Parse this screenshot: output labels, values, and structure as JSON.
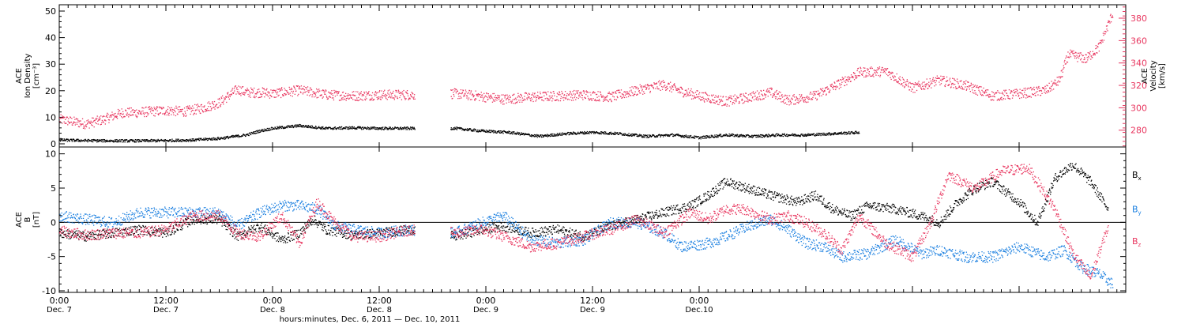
{
  "colors": {
    "black": "#000000",
    "pink": "#e8365f",
    "blue": "#1a7fe0",
    "axis": "#000000"
  },
  "chart_data": [
    {
      "type": "scatter",
      "panel": "top",
      "ylabel_lines": [
        "ACE",
        "Ion Density",
        "[cm⁻³]"
      ],
      "y2label_lines": [
        "ACE",
        "Velocity",
        "[km/s]"
      ],
      "ylim": [
        0,
        50
      ],
      "y_ticks": [
        0,
        10,
        20,
        30,
        40,
        50
      ],
      "y2lim": [
        265,
        392
      ],
      "y2_ticks": [
        280,
        300,
        320,
        340,
        360,
        380
      ],
      "series": [
        {
          "color": "#000000",
          "axis": "left",
          "points": [
            [
              0,
              1.6
            ],
            [
              6,
              1.4
            ],
            [
              12,
              1.3
            ],
            [
              18,
              1.3
            ],
            [
              24,
              1.4
            ],
            [
              30,
              1.6
            ],
            [
              36,
              2.2
            ],
            [
              42,
              3.5
            ],
            [
              45,
              5.0
            ],
            [
              48,
              6.0
            ],
            [
              54,
              7.0
            ],
            [
              60,
              6.0
            ],
            [
              66,
              6.2
            ],
            [
              72,
              6.0
            ],
            [
              79,
              6.0
            ],
            [
              89,
              6.0
            ],
            [
              95,
              5.0
            ],
            [
              101,
              4.5
            ],
            [
              108,
              3.0
            ],
            [
              114,
              4.0
            ],
            [
              120,
              4.5
            ],
            [
              126,
              4.0
            ],
            [
              132,
              3.0
            ],
            [
              138,
              3.5
            ],
            [
              144,
              2.5
            ],
            [
              150,
              3.5
            ],
            [
              156,
              3.0
            ],
            [
              162,
              3.5
            ],
            [
              168,
              3.5
            ],
            [
              174,
              4.0
            ],
            [
              180,
              4.5
            ]
          ]
        },
        {
          "color": "#e8365f",
          "axis": "right",
          "points": [
            [
              0,
              290
            ],
            [
              3,
              288
            ],
            [
              6,
              286
            ],
            [
              10,
              290
            ],
            [
              14,
              296
            ],
            [
              17,
              296
            ],
            [
              20,
              297
            ],
            [
              24,
              298
            ],
            [
              28,
              297
            ],
            [
              32,
              300
            ],
            [
              36,
              305
            ],
            [
              40,
              317
            ],
            [
              42,
              314
            ],
            [
              46,
              314
            ],
            [
              48,
              313
            ],
            [
              54,
              316
            ],
            [
              60,
              312
            ],
            [
              66,
              311
            ],
            [
              72,
              312
            ],
            [
              79,
              312
            ],
            [
              89,
              313
            ],
            [
              94,
              311
            ],
            [
              100,
              308
            ],
            [
              106,
              310
            ],
            [
              112,
              311
            ],
            [
              118,
              312
            ],
            [
              124,
              310
            ],
            [
              130,
              316
            ],
            [
              136,
              321
            ],
            [
              140,
              315
            ],
            [
              144,
              311
            ],
            [
              150,
              306
            ],
            [
              154,
              309
            ],
            [
              160,
              314
            ],
            [
              164,
              307
            ],
            [
              170,
              311
            ],
            [
              176,
              323
            ],
            [
              180,
              332
            ],
            [
              186,
              333
            ],
            [
              192,
              318
            ],
            [
              198,
              325
            ],
            [
              204,
              320
            ],
            [
              210,
              311
            ],
            [
              216,
              313
            ],
            [
              222,
              316
            ],
            [
              225,
              325
            ],
            [
              227,
              348
            ],
            [
              231,
              344
            ],
            [
              234,
              355
            ],
            [
              237,
              385
            ]
          ]
        }
      ]
    },
    {
      "type": "scatter",
      "panel": "bottom",
      "ylabel_lines": [
        "ACE",
        "B",
        "[nT]"
      ],
      "ylim": [
        -10,
        11
      ],
      "y_ticks": [
        -10,
        -5,
        0,
        5,
        10
      ],
      "legend": [
        "Bx",
        "By",
        "Bz"
      ],
      "series": [
        {
          "name": "Bx",
          "color": "#000000",
          "points": [
            [
              0,
              -1.5
            ],
            [
              6,
              -2.0
            ],
            [
              12,
              -1.5
            ],
            [
              18,
              -1.0
            ],
            [
              24,
              -1.5
            ],
            [
              30,
              0.5
            ],
            [
              36,
              0.5
            ],
            [
              40,
              -2.0
            ],
            [
              45,
              -0.5
            ],
            [
              50,
              -2.5
            ],
            [
              54,
              -1.5
            ],
            [
              57,
              0.5
            ],
            [
              60,
              -1.0
            ],
            [
              66,
              -1.8
            ],
            [
              72,
              -1.5
            ],
            [
              79,
              -1.0
            ],
            [
              89,
              -2.0
            ],
            [
              95,
              -1.0
            ],
            [
              100,
              -0.5
            ],
            [
              106,
              -1.5
            ],
            [
              112,
              -1.0
            ],
            [
              118,
              -2.0
            ],
            [
              124,
              -0.5
            ],
            [
              130,
              0.5
            ],
            [
              136,
              1.5
            ],
            [
              142,
              2.5
            ],
            [
              146,
              4.0
            ],
            [
              150,
              6.0
            ],
            [
              155,
              5.0
            ],
            [
              160,
              4.0
            ],
            [
              166,
              3.0
            ],
            [
              170,
              4.0
            ],
            [
              174,
              2.0
            ],
            [
              178,
              1.0
            ],
            [
              182,
              2.5
            ],
            [
              188,
              2.0
            ],
            [
              194,
              1.0
            ],
            [
              198,
              0.0
            ],
            [
              202,
              3.0
            ],
            [
              206,
              5.0
            ],
            [
              210,
              6.0
            ],
            [
              216,
              3.0
            ],
            [
              220,
              0.0
            ],
            [
              224,
              6.5
            ],
            [
              228,
              8.5
            ],
            [
              232,
              6.0
            ],
            [
              236,
              2.0
            ]
          ]
        },
        {
          "name": "By",
          "color": "#1a7fe0",
          "points": [
            [
              0,
              1.0
            ],
            [
              6,
              0.5
            ],
            [
              12,
              0.0
            ],
            [
              18,
              1.5
            ],
            [
              24,
              1.5
            ],
            [
              30,
              1.5
            ],
            [
              36,
              1.5
            ],
            [
              40,
              -0.5
            ],
            [
              45,
              1.5
            ],
            [
              50,
              2.5
            ],
            [
              54,
              2.5
            ],
            [
              58,
              2.0
            ],
            [
              62,
              -0.5
            ],
            [
              66,
              -1.0
            ],
            [
              72,
              -1.5
            ],
            [
              79,
              -1.0
            ],
            [
              89,
              -1.5
            ],
            [
              95,
              0.0
            ],
            [
              100,
              1.0
            ],
            [
              106,
              -2.5
            ],
            [
              112,
              -3.0
            ],
            [
              118,
              -2.5
            ],
            [
              124,
              0.0
            ],
            [
              130,
              0.0
            ],
            [
              136,
              -1.5
            ],
            [
              140,
              -3.5
            ],
            [
              146,
              -3.0
            ],
            [
              150,
              -2.0
            ],
            [
              155,
              -0.5
            ],
            [
              160,
              0.5
            ],
            [
              164,
              -1.0
            ],
            [
              168,
              -3.0
            ],
            [
              172,
              -3.5
            ],
            [
              176,
              -5.0
            ],
            [
              182,
              -4.5
            ],
            [
              188,
              -2.5
            ],
            [
              194,
              -4.5
            ],
            [
              198,
              -4.0
            ],
            [
              204,
              -5.0
            ],
            [
              210,
              -5.0
            ],
            [
              216,
              -3.5
            ],
            [
              222,
              -5.0
            ],
            [
              226,
              -4.0
            ],
            [
              230,
              -6.5
            ],
            [
              234,
              -7.5
            ],
            [
              237,
              -9.0
            ]
          ]
        },
        {
          "name": "Bz",
          "color": "#e8365f",
          "points": [
            [
              0,
              -1.2
            ],
            [
              6,
              -1.8
            ],
            [
              12,
              -1.5
            ],
            [
              18,
              -1.5
            ],
            [
              24,
              -1.0
            ],
            [
              30,
              1.0
            ],
            [
              36,
              1.0
            ],
            [
              40,
              -1.5
            ],
            [
              45,
              -2.0
            ],
            [
              50,
              1.0
            ],
            [
              54,
              -3.0
            ],
            [
              58,
              3.0
            ],
            [
              62,
              0.0
            ],
            [
              66,
              -2.0
            ],
            [
              72,
              -2.0
            ],
            [
              79,
              -1.0
            ],
            [
              89,
              -1.5
            ],
            [
              95,
              -1.0
            ],
            [
              100,
              -2.0
            ],
            [
              106,
              -3.5
            ],
            [
              112,
              -3.0
            ],
            [
              118,
              -2.0
            ],
            [
              124,
              -1.0
            ],
            [
              130,
              0.5
            ],
            [
              136,
              -1.5
            ],
            [
              142,
              1.5
            ],
            [
              146,
              0.5
            ],
            [
              150,
              2.0
            ],
            [
              154,
              2.0
            ],
            [
              160,
              0.5
            ],
            [
              164,
              1.0
            ],
            [
              168,
              0.0
            ],
            [
              172,
              -1.5
            ],
            [
              176,
              -4.0
            ],
            [
              180,
              1.0
            ],
            [
              186,
              -3.0
            ],
            [
              192,
              -5.0
            ],
            [
              196,
              0.0
            ],
            [
              200,
              7.0
            ],
            [
              206,
              5.0
            ],
            [
              212,
              7.5
            ],
            [
              218,
              8.0
            ],
            [
              224,
              2.0
            ],
            [
              228,
              -4.5
            ],
            [
              232,
              -8.0
            ],
            [
              236,
              -0.5
            ]
          ]
        }
      ]
    },
    {
      "xlim": [
        0,
        240
      ],
      "x_major_ticks": [
        0,
        24,
        48,
        72,
        96,
        120,
        144,
        168,
        192,
        216,
        240
      ],
      "x_ticks": [
        {
          "x": 0,
          "line1": "0:00",
          "line2": "Dec. 7"
        },
        {
          "x": 24,
          "line1": "12:00",
          "line2": "Dec. 7"
        },
        {
          "x": 48,
          "line1": "0:00",
          "line2": "Dec. 8"
        },
        {
          "x": 72,
          "line1": "12:00",
          "line2": "Dec. 8"
        },
        {
          "x": 96,
          "line1": "0:00",
          "line2": "Dec. 9"
        },
        {
          "x": 120,
          "line1": "12:00",
          "line2": "Dec. 9"
        },
        {
          "x": 144,
          "line1": "0:00",
          "line2": "Dec.10"
        }
      ],
      "xlabel": "hours:minutes, Dec. 6, 2011 — Dec. 10, 2011",
      "data_gap": [
        80,
        88
      ]
    }
  ]
}
